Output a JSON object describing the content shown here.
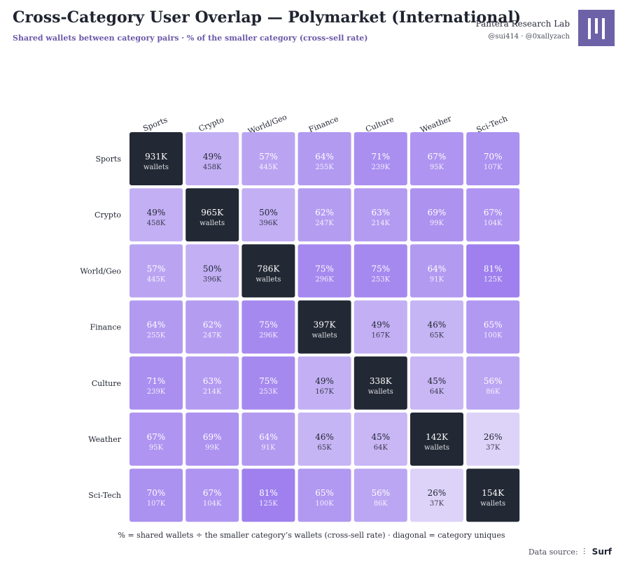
{
  "header": {
    "title": "Cross-Category User Overlap — Polymarket (International)",
    "subtitle": "Shared wallets between category pairs · % of the smaller category (cross-sell rate)",
    "brand_name": "Pantera Research Lab",
    "brand_handles": "@sui414 · @0xallyzach"
  },
  "footer": {
    "note": "% = shared wallets ÷ the smaller category’s wallets (cross-sell rate) · diagonal = category uniques",
    "source_label": "Data source:",
    "source_name": "Surf"
  },
  "colors": {
    "diagonal": "#222834",
    "low": "#ddd3f8",
    "high": "#9f80ee",
    "text_dark": "#1f2430",
    "text_light": "#ffffff"
  },
  "chart_data": {
    "type": "heatmap",
    "categories": [
      "Sports",
      "Crypto",
      "World/Geo",
      "Finance",
      "Culture",
      "Weather",
      "Sci-Tech"
    ],
    "cells": [
      [
        {
          "pct": "931K",
          "count": "wallets",
          "diag": true
        },
        {
          "pct": "49%",
          "count": "458K"
        },
        {
          "pct": "57%",
          "count": "445K"
        },
        {
          "pct": "64%",
          "count": "255K"
        },
        {
          "pct": "71%",
          "count": "239K"
        },
        {
          "pct": "67%",
          "count": "95K"
        },
        {
          "pct": "70%",
          "count": "107K"
        }
      ],
      [
        {
          "pct": "49%",
          "count": "458K"
        },
        {
          "pct": "965K",
          "count": "wallets",
          "diag": true
        },
        {
          "pct": "50%",
          "count": "396K"
        },
        {
          "pct": "62%",
          "count": "247K"
        },
        {
          "pct": "63%",
          "count": "214K"
        },
        {
          "pct": "69%",
          "count": "99K"
        },
        {
          "pct": "67%",
          "count": "104K"
        }
      ],
      [
        {
          "pct": "57%",
          "count": "445K"
        },
        {
          "pct": "50%",
          "count": "396K"
        },
        {
          "pct": "786K",
          "count": "wallets",
          "diag": true
        },
        {
          "pct": "75%",
          "count": "296K"
        },
        {
          "pct": "75%",
          "count": "253K"
        },
        {
          "pct": "64%",
          "count": "91K"
        },
        {
          "pct": "81%",
          "count": "125K"
        }
      ],
      [
        {
          "pct": "64%",
          "count": "255K"
        },
        {
          "pct": "62%",
          "count": "247K"
        },
        {
          "pct": "75%",
          "count": "296K"
        },
        {
          "pct": "397K",
          "count": "wallets",
          "diag": true
        },
        {
          "pct": "49%",
          "count": "167K"
        },
        {
          "pct": "46%",
          "count": "65K"
        },
        {
          "pct": "65%",
          "count": "100K"
        }
      ],
      [
        {
          "pct": "71%",
          "count": "239K"
        },
        {
          "pct": "63%",
          "count": "214K"
        },
        {
          "pct": "75%",
          "count": "253K"
        },
        {
          "pct": "49%",
          "count": "167K"
        },
        {
          "pct": "338K",
          "count": "wallets",
          "diag": true
        },
        {
          "pct": "45%",
          "count": "64K"
        },
        {
          "pct": "56%",
          "count": "86K"
        }
      ],
      [
        {
          "pct": "67%",
          "count": "95K"
        },
        {
          "pct": "69%",
          "count": "99K"
        },
        {
          "pct": "64%",
          "count": "91K"
        },
        {
          "pct": "46%",
          "count": "65K"
        },
        {
          "pct": "45%",
          "count": "64K"
        },
        {
          "pct": "142K",
          "count": "wallets",
          "diag": true
        },
        {
          "pct": "26%",
          "count": "37K"
        }
      ],
      [
        {
          "pct": "70%",
          "count": "107K"
        },
        {
          "pct": "67%",
          "count": "104K"
        },
        {
          "pct": "81%",
          "count": "125K"
        },
        {
          "pct": "65%",
          "count": "100K"
        },
        {
          "pct": "56%",
          "count": "86K"
        },
        {
          "pct": "26%",
          "count": "37K"
        },
        {
          "pct": "154K",
          "count": "wallets",
          "diag": true
        }
      ]
    ]
  }
}
